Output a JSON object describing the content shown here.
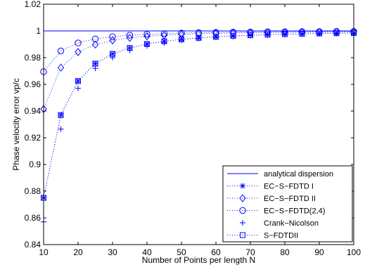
{
  "chart_data": {
    "type": "line",
    "title": "",
    "xlabel": "Number of Points per length N",
    "ylabel": "Phase velocity error vp/c",
    "xlim": [
      10,
      100
    ],
    "ylim": [
      0.84,
      1.02
    ],
    "grid": false,
    "legend_position": "bottom-right",
    "xticks": [
      "10",
      "20",
      "30",
      "40",
      "50",
      "60",
      "70",
      "80",
      "90",
      "100"
    ],
    "yticks": [
      "0.84",
      "0.86",
      "0.88",
      "0.9",
      "0.92",
      "0.94",
      "0.96",
      "0.98",
      "1",
      "1.02"
    ],
    "x": [
      10,
      15,
      20,
      25,
      30,
      35,
      40,
      45,
      50,
      55,
      60,
      65,
      70,
      75,
      80,
      85,
      90,
      95,
      100
    ],
    "series": [
      {
        "name": "analytical dispersion",
        "style": "solid",
        "marker": "none",
        "color": "#0000ff",
        "values": [
          1,
          1,
          1,
          1,
          1,
          1,
          1,
          1,
          1,
          1,
          1,
          1,
          1,
          1,
          1,
          1,
          1,
          1,
          1
        ]
      },
      {
        "name": "EC−S−FDTD I",
        "style": "dotted",
        "marker": "asterisk",
        "color": "#0000ff",
        "values": [
          0.875,
          0.937,
          0.9625,
          0.9755,
          0.9828,
          0.9872,
          0.9902,
          0.9922,
          0.9937,
          0.9948,
          0.9956,
          0.9963,
          0.9968,
          0.9972,
          0.9976,
          0.9978,
          0.9981,
          0.9983,
          0.9984
        ]
      },
      {
        "name": "EC−S−FDTD II",
        "style": "dotted",
        "marker": "diamond",
        "color": "#0000ff",
        "values": [
          0.9415,
          0.9725,
          0.9842,
          0.9898,
          0.9929,
          0.9948,
          0.996,
          0.9968,
          0.9974,
          0.9979,
          0.9982,
          0.9985,
          0.9987,
          0.9989,
          0.999,
          0.9991,
          0.9992,
          0.9993,
          0.9994
        ]
      },
      {
        "name": "EC−S−FDTD(2,4)",
        "style": "dotted",
        "marker": "circle",
        "color": "#0000ff",
        "values": [
          0.9695,
          0.985,
          0.991,
          0.994,
          0.9957,
          0.9968,
          0.9975,
          0.998,
          0.9984,
          0.9987,
          0.9989,
          0.9991,
          0.9992,
          0.9993,
          0.9994,
          0.9995,
          0.9995,
          0.9996,
          0.9996
        ]
      },
      {
        "name": "Crank−Nicolson",
        "style": "none",
        "marker": "plus",
        "color": "#0000ff",
        "values": [
          0.857,
          0.9265,
          0.957,
          0.972,
          0.98,
          0.9855,
          0.9888,
          0.9912,
          0.993,
          0.9942,
          0.9951,
          0.9958,
          0.9964,
          0.9969,
          0.9973,
          0.9976,
          0.9979,
          0.9981,
          0.9983
        ]
      },
      {
        "name": "S−FDTDII",
        "style": "dotted",
        "marker": "square",
        "color": "#0000ff",
        "values": [
          0.875,
          0.937,
          0.9625,
          0.9755,
          0.9828,
          0.9872,
          0.9902,
          0.9922,
          0.9937,
          0.9948,
          0.9956,
          0.9963,
          0.9968,
          0.9972,
          0.9976,
          0.9978,
          0.9981,
          0.9983,
          0.9984
        ]
      }
    ]
  }
}
